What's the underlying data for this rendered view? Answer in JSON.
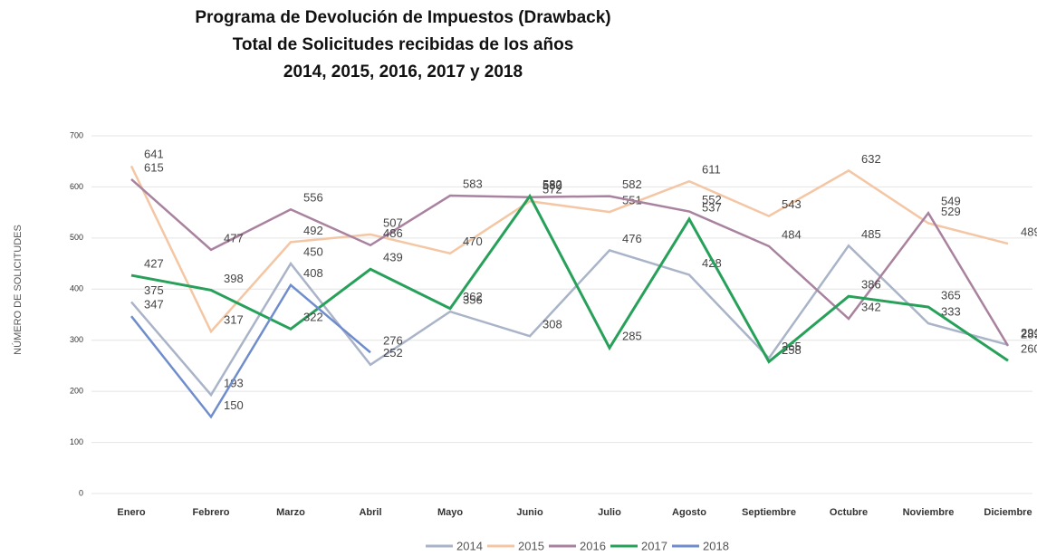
{
  "chart_data": {
    "type": "line",
    "title": [
      "Programa de Devolución de Impuestos (Drawback)",
      "Total de Solicitudes recibidas de los años",
      "2014, 2015, 2016, 2017 y 2018"
    ],
    "y_label": "NÚMERO DE SOLICITUDES",
    "categories": [
      "Enero",
      "Febrero",
      "Marzo",
      "Abril",
      "Mayo",
      "Junio",
      "Julio",
      "Agosto",
      "Septiembre",
      "Octubre",
      "Noviembre",
      "Diciembre"
    ],
    "series": [
      {
        "name": "2014",
        "color": "#aab4c8",
        "values": [
          375,
          193,
          450,
          252,
          356,
          308,
          476,
          428,
          265,
          485,
          333,
          291
        ]
      },
      {
        "name": "2015",
        "color": "#f4c6a4",
        "values": [
          641,
          317,
          492,
          507,
          470,
          572,
          551,
          611,
          543,
          632,
          529,
          489
        ]
      },
      {
        "name": "2016",
        "color": "#a8829e",
        "values": [
          615,
          477,
          556,
          486,
          583,
          580,
          582,
          552,
          484,
          342,
          549,
          289
        ]
      },
      {
        "name": "2017",
        "color": "#27a05a",
        "values": [
          427,
          398,
          322,
          439,
          362,
          582,
          285,
          537,
          258,
          386,
          365,
          260
        ]
      },
      {
        "name": "2018",
        "color": "#6f8dcc",
        "values": [
          347,
          150,
          408,
          276,
          null,
          null,
          null,
          null,
          null,
          null,
          null,
          null
        ]
      }
    ],
    "ylim": [
      0,
      700
    ],
    "yticks": [
      0,
      100,
      200,
      300,
      400,
      500,
      600,
      700
    ],
    "grid": true,
    "legend": "bottom"
  }
}
